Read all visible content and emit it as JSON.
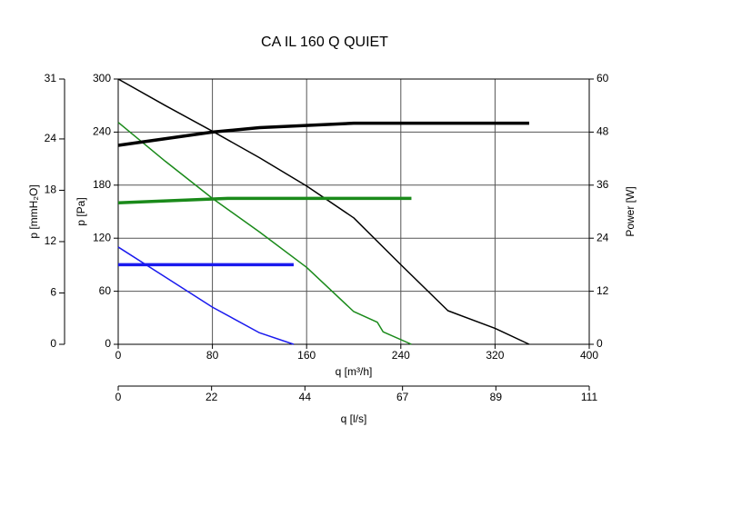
{
  "chart_data": {
    "type": "line",
    "title": "CA IL 160 Q QUIET",
    "x_label": "q [m³/h]",
    "y_label": "p [Pa]",
    "y2_label": "Power [W]",
    "y3_label": "p [mmH₂O]",
    "x2_label": "q [l/s]",
    "xlim": [
      0,
      400
    ],
    "xticks": [
      0,
      80,
      160,
      240,
      320,
      400
    ],
    "ylim": [
      0,
      300
    ],
    "yticks": [
      0,
      60,
      120,
      180,
      240,
      300
    ],
    "y2lim": [
      0,
      60
    ],
    "y2ticks": [
      0,
      12,
      24,
      36,
      48,
      60
    ],
    "y3lim": [
      0,
      31
    ],
    "y3ticks": [
      0,
      6,
      12,
      18,
      24,
      31
    ],
    "x2lim": [
      0,
      111
    ],
    "x2ticks": [
      0,
      22,
      44,
      67,
      89,
      111
    ],
    "grid": true,
    "series": [
      {
        "color": "#000000",
        "x": [
          0,
          40,
          80,
          120,
          160,
          200,
          240,
          280,
          320,
          349
        ],
        "values": [
          300,
          270,
          241,
          211,
          179,
          143,
          90,
          38,
          18,
          0
        ]
      },
      {
        "color": "#1a8a1a",
        "x": [
          0,
          40,
          80,
          120,
          160,
          200,
          220,
          225,
          249
        ],
        "values": [
          251,
          207,
          165,
          127,
          87,
          37,
          25,
          14,
          0
        ]
      },
      {
        "color": "#1a1aee",
        "x": [
          0,
          40,
          80,
          120,
          149
        ],
        "values": [
          110,
          76,
          42,
          13,
          0
        ]
      },
      {
        "color": "#000000",
        "axis": "y2",
        "x": [
          0,
          80,
          120,
          200,
          349
        ],
        "values": [
          45,
          48,
          49,
          50,
          50
        ]
      },
      {
        "color": "#1a8a1a",
        "axis": "y2",
        "x": [
          0,
          93,
          249
        ],
        "values": [
          32,
          33,
          33
        ]
      },
      {
        "color": "#1a1aee",
        "axis": "y2",
        "x": [
          0,
          149
        ],
        "values": [
          18,
          18
        ]
      }
    ]
  }
}
